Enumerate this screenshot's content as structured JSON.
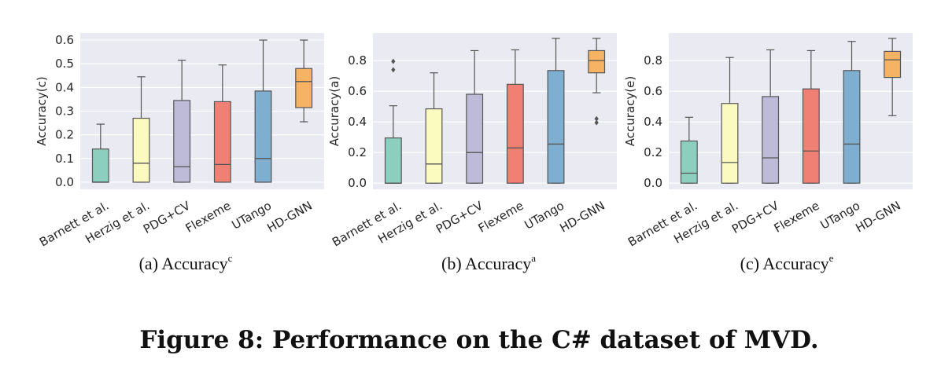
{
  "figure_caption": "Figure 8: Performance on the C# dataset of MVD.",
  "colors": {
    "panel_bg": "#eaeaf2",
    "grid": "#ffffff",
    "line": "#555555",
    "boxes": [
      "#8dcfbf",
      "#fbfbbf",
      "#bdbbd8",
      "#f08074",
      "#7fafd0",
      "#f5b363"
    ]
  },
  "chart_data": [
    {
      "type": "box",
      "caption": "(a) Accuracy",
      "caption_sup": "c",
      "ylabel": "Accuracy(c)",
      "ylim": [
        -0.03,
        0.63
      ],
      "yticks": [
        0.0,
        0.1,
        0.2,
        0.3,
        0.4,
        0.5,
        0.6
      ],
      "ytick_labels": [
        "0.0",
        "0.1",
        "0.2",
        "0.3",
        "0.4",
        "0.5",
        "0.6"
      ],
      "categories": [
        "Barnett et al.",
        "Herzig et al.",
        "PDG+CV",
        "Flexeme",
        "UTango",
        "HD-GNN"
      ],
      "boxes": [
        {
          "whislo": 0.0,
          "q1": 0.0,
          "med": 0.0,
          "q3": 0.14,
          "whishi": 0.245,
          "fliers": []
        },
        {
          "whislo": 0.0,
          "q1": 0.0,
          "med": 0.08,
          "q3": 0.27,
          "whishi": 0.445,
          "fliers": []
        },
        {
          "whislo": 0.0,
          "q1": 0.0,
          "med": 0.065,
          "q3": 0.345,
          "whishi": 0.515,
          "fliers": []
        },
        {
          "whislo": 0.0,
          "q1": 0.0,
          "med": 0.075,
          "q3": 0.34,
          "whishi": 0.495,
          "fliers": []
        },
        {
          "whislo": 0.0,
          "q1": 0.0,
          "med": 0.1,
          "q3": 0.385,
          "whishi": 0.6,
          "fliers": []
        },
        {
          "whislo": 0.255,
          "q1": 0.315,
          "med": 0.425,
          "q3": 0.48,
          "whishi": 0.6,
          "fliers": []
        }
      ]
    },
    {
      "type": "box",
      "caption": "(b) Accuracy",
      "caption_sup": "a",
      "ylabel": "Accuracy(a)",
      "ylim": [
        -0.04,
        0.98
      ],
      "yticks": [
        0.0,
        0.2,
        0.4,
        0.6,
        0.8
      ],
      "ytick_labels": [
        "0.0",
        "0.2",
        "0.4",
        "0.6",
        "0.8"
      ],
      "categories": [
        "Barnett et al.",
        "Herzig et al.",
        "PDG+CV",
        "Flexeme",
        "UTango",
        "HD-GNN"
      ],
      "boxes": [
        {
          "whislo": 0.0,
          "q1": 0.0,
          "med": 0.0,
          "q3": 0.295,
          "whishi": 0.505,
          "fliers": [
            0.74,
            0.795
          ]
        },
        {
          "whislo": 0.0,
          "q1": 0.0,
          "med": 0.125,
          "q3": 0.485,
          "whishi": 0.72,
          "fliers": []
        },
        {
          "whislo": 0.0,
          "q1": 0.0,
          "med": 0.2,
          "q3": 0.58,
          "whishi": 0.865,
          "fliers": []
        },
        {
          "whislo": 0.0,
          "q1": 0.0,
          "med": 0.23,
          "q3": 0.645,
          "whishi": 0.87,
          "fliers": []
        },
        {
          "whislo": 0.0,
          "q1": 0.0,
          "med": 0.255,
          "q3": 0.735,
          "whishi": 0.945,
          "fliers": []
        },
        {
          "whislo": 0.59,
          "q1": 0.72,
          "med": 0.8,
          "q3": 0.865,
          "whishi": 0.945,
          "fliers": [
            0.395,
            0.42
          ]
        }
      ]
    },
    {
      "type": "box",
      "caption": "(c) Accuracy",
      "caption_sup": "e",
      "ylabel": "Accuracy(e)",
      "ylim": [
        -0.04,
        0.98
      ],
      "yticks": [
        0.0,
        0.2,
        0.4,
        0.6,
        0.8
      ],
      "ytick_labels": [
        "0.0",
        "0.2",
        "0.4",
        "0.6",
        "0.8"
      ],
      "categories": [
        "Barnett et al.",
        "Herzig et al.",
        "PDG+CV",
        "Flexeme",
        "UTango",
        "HD-GNN"
      ],
      "boxes": [
        {
          "whislo": 0.0,
          "q1": 0.0,
          "med": 0.065,
          "q3": 0.275,
          "whishi": 0.43,
          "fliers": []
        },
        {
          "whislo": 0.0,
          "q1": 0.0,
          "med": 0.135,
          "q3": 0.52,
          "whishi": 0.82,
          "fliers": []
        },
        {
          "whislo": 0.0,
          "q1": 0.0,
          "med": 0.165,
          "q3": 0.565,
          "whishi": 0.87,
          "fliers": []
        },
        {
          "whislo": 0.0,
          "q1": 0.0,
          "med": 0.21,
          "q3": 0.615,
          "whishi": 0.865,
          "fliers": []
        },
        {
          "whislo": 0.0,
          "q1": 0.0,
          "med": 0.255,
          "q3": 0.735,
          "whishi": 0.925,
          "fliers": []
        },
        {
          "whislo": 0.44,
          "q1": 0.69,
          "med": 0.805,
          "q3": 0.86,
          "whishi": 0.945,
          "fliers": []
        }
      ]
    }
  ]
}
